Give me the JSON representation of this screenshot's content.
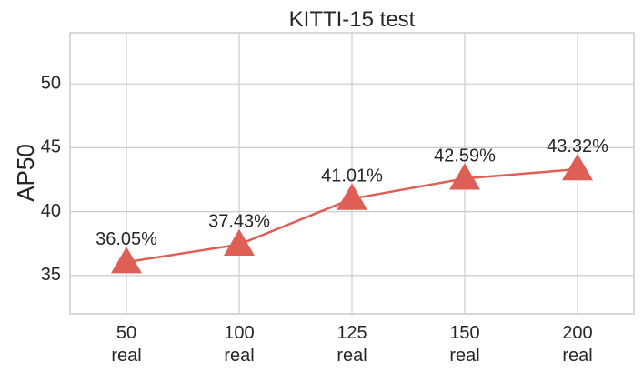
{
  "chart_data": {
    "type": "line",
    "title": "KITTI-15 test",
    "xlabel": "",
    "ylabel": "AP50",
    "categories": [
      [
        "50",
        "real"
      ],
      [
        "100",
        "real"
      ],
      [
        "125",
        "real"
      ],
      [
        "150",
        "real"
      ],
      [
        "200",
        "real"
      ]
    ],
    "values": [
      36.05,
      37.43,
      41.01,
      42.59,
      43.32
    ],
    "data_labels": [
      "36.05%",
      "37.43%",
      "41.01%",
      "42.59%",
      "43.32%"
    ],
    "ylim": [
      32,
      54
    ],
    "yticks": [
      35,
      40,
      45,
      50
    ],
    "marker": "triangle",
    "color": "#dd5f55",
    "grid": true
  }
}
